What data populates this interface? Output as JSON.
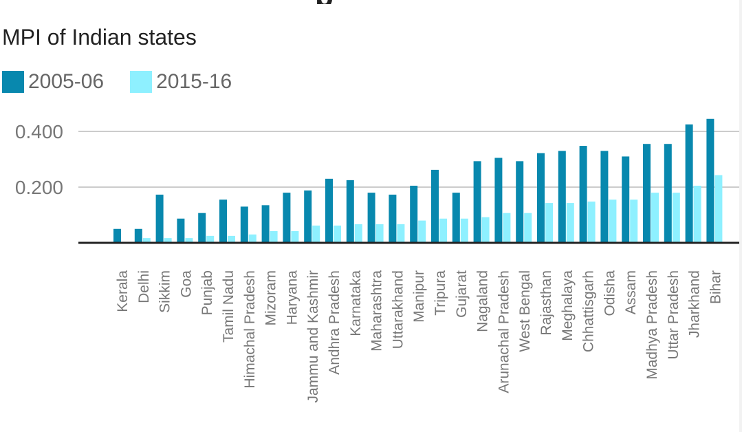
{
  "header": {
    "cut_title": "p"
  },
  "colors": {
    "series_2005": "#0888ae",
    "series_2015": "#8ef0ff",
    "grid": "#cccccc",
    "axis": "#222222",
    "tick_text": "#777777"
  },
  "chart_data": {
    "type": "bar",
    "title": "MPI of Indian states",
    "xlabel": "",
    "ylabel": "",
    "ylim": [
      0,
      0.45
    ],
    "yticks": [
      0.2,
      0.4
    ],
    "ytick_labels": [
      "0.200",
      "0.400"
    ],
    "grid": true,
    "legend_position": "top-left",
    "categories": [
      "Kerala",
      "Delhi",
      "Sikkim",
      "Goa",
      "Punjab",
      "Tamil Nadu",
      "Himachal Pradesh",
      "Mizoram",
      "Haryana",
      "Jammu and Kashmir",
      "Andhra Pradesh",
      "Karnataka",
      "Maharashtra",
      "Uttarakhand",
      "Manipur",
      "Tripura",
      "Gujarat",
      "Nagaland",
      "Arunachal Pradesh",
      "West Bengal",
      "Rajasthan",
      "Meghalaya",
      "Chhattisgarh",
      "Odisha",
      "Assam",
      "Madhya Pradesh",
      "Uttar Pradesh",
      "Jharkhand",
      "Bihar"
    ],
    "series": [
      {
        "name": "2005-06",
        "color": "#0888ae",
        "values": [
          0.05,
          0.05,
          0.173,
          0.087,
          0.107,
          0.155,
          0.13,
          0.135,
          0.18,
          0.188,
          0.23,
          0.225,
          0.18,
          0.173,
          0.205,
          0.262,
          0.18,
          0.293,
          0.305,
          0.293,
          0.322,
          0.33,
          0.348,
          0.33,
          0.31,
          0.355,
          0.355,
          0.425,
          0.445
        ]
      },
      {
        "name": "2015-16",
        "color": "#8ef0ff",
        "values": [
          0.003,
          0.017,
          0.017,
          0.017,
          0.025,
          0.025,
          0.03,
          0.042,
          0.042,
          0.062,
          0.062,
          0.067,
          0.067,
          0.067,
          0.08,
          0.087,
          0.087,
          0.092,
          0.107,
          0.107,
          0.143,
          0.143,
          0.148,
          0.155,
          0.155,
          0.18,
          0.18,
          0.205,
          0.243
        ]
      }
    ]
  }
}
